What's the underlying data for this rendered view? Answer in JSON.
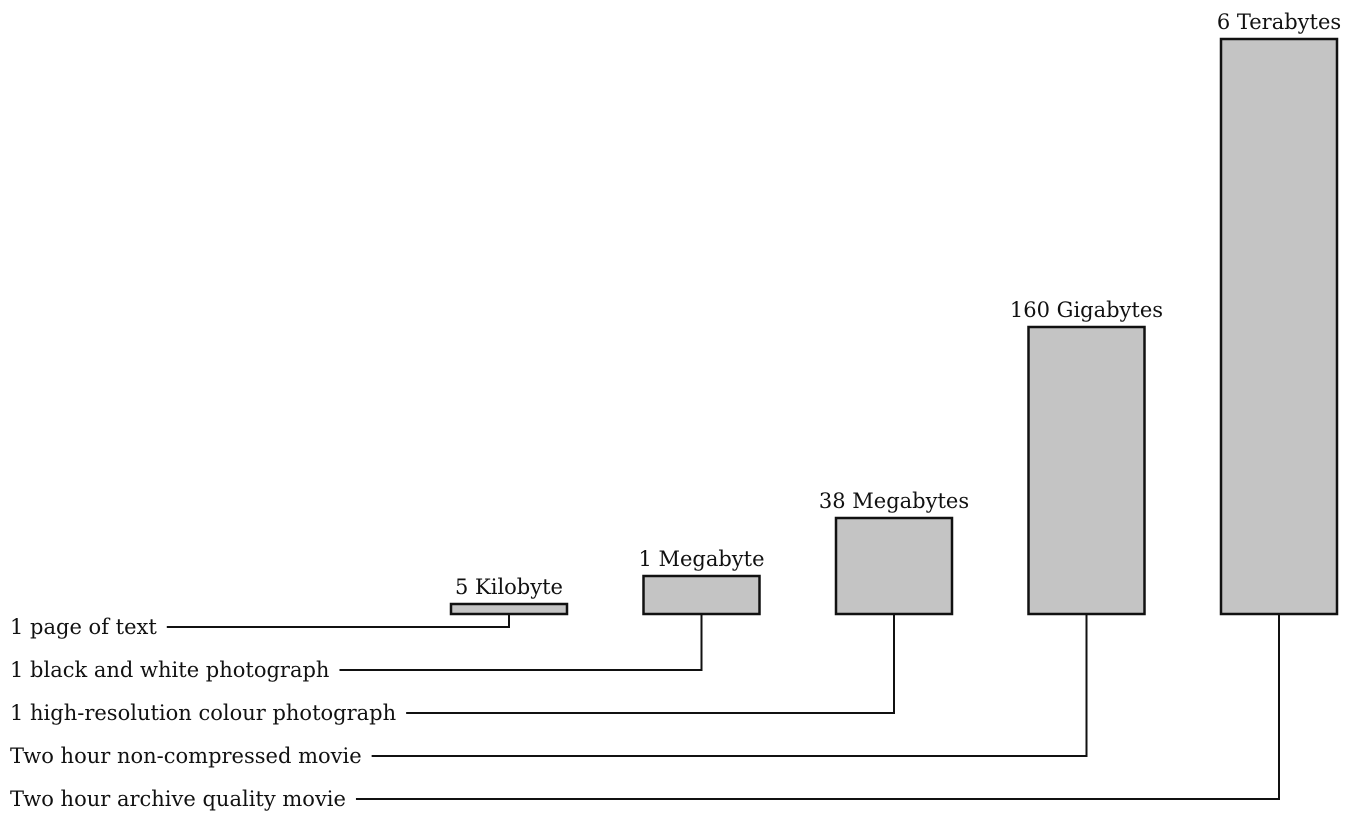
{
  "chart_data": {
    "type": "bar",
    "categories": [
      "1 page of text",
      "1 black and white photograph",
      "1 high-resolution colour photograph",
      "Two hour non-compressed movie",
      "Two hour archive quality movie"
    ],
    "value_labels": [
      "5 Kilobyte",
      "1 Megabyte",
      "38 Megabytes",
      "160 Gigabytes",
      "6 Terabytes"
    ],
    "values_bytes": [
      5000,
      1000000,
      38000000,
      160000000000,
      6000000000000
    ],
    "colors": {
      "bar_fill": "#c4c4c4",
      "stroke": "#111111"
    },
    "grid": false,
    "legend": false
  }
}
